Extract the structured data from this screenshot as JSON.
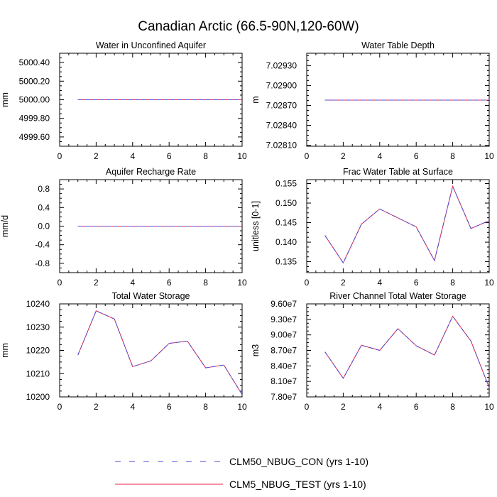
{
  "figure": {
    "title": "Canadian Arctic (66.5-90N,120-60W)"
  },
  "legend": {
    "items": [
      {
        "label": "CLM50_NBUG_CON (yrs 1-10)",
        "color": "#4a4adb",
        "dash": true
      },
      {
        "label": "CLM5_NBUG_TEST (yrs 1-10)",
        "color": "#e8264a",
        "dash": false
      }
    ]
  },
  "colors": {
    "con": "#4a4adb",
    "test": "#e8264a"
  },
  "chart_data": [
    {
      "type": "line",
      "title": "Water in Unconfined Aquifer",
      "ylabel": "mm",
      "xlim": [
        0,
        10
      ],
      "ylim": [
        4999.5,
        5000.5
      ],
      "xticks": [
        0,
        2,
        4,
        6,
        8,
        10
      ],
      "yticks": [
        4999.6,
        4999.8,
        5000.0,
        5000.2,
        5000.4
      ],
      "yticklabels": [
        "4999.60",
        "4999.80",
        "5000.00",
        "5000.20",
        "5000.40"
      ],
      "x": [
        1,
        2,
        3,
        4,
        5,
        6,
        7,
        8,
        9,
        10
      ],
      "series": [
        {
          "name": "CLM50_NBUG_CON (yrs 1-10)",
          "values": [
            5000,
            5000,
            5000,
            5000,
            5000,
            5000,
            5000,
            5000,
            5000,
            5000
          ]
        },
        {
          "name": "CLM5_NBUG_TEST (yrs 1-10)",
          "values": [
            5000,
            5000,
            5000,
            5000,
            5000,
            5000,
            5000,
            5000,
            5000,
            5000
          ]
        }
      ]
    },
    {
      "type": "line",
      "title": "Water Table Depth",
      "ylabel": "m",
      "xlim": [
        0,
        10
      ],
      "ylim": [
        7.028085,
        7.029485
      ],
      "xticks": [
        0,
        2,
        4,
        6,
        8,
        10
      ],
      "yticks": [
        7.0281,
        7.0284,
        7.0287,
        7.029,
        7.0293
      ],
      "yticklabels": [
        "7.02810",
        "7.02840",
        "7.02870",
        "7.02900",
        "7.02930"
      ],
      "x": [
        1,
        2,
        3,
        4,
        5,
        6,
        7,
        8,
        9,
        10
      ],
      "series": [
        {
          "name": "CLM50_NBUG_CON (yrs 1-10)",
          "values": [
            7.02878,
            7.02878,
            7.02878,
            7.02878,
            7.02878,
            7.02878,
            7.02878,
            7.02878,
            7.02878,
            7.02878
          ]
        },
        {
          "name": "CLM5_NBUG_TEST (yrs 1-10)",
          "values": [
            7.02878,
            7.02878,
            7.02878,
            7.02878,
            7.02878,
            7.02878,
            7.02878,
            7.02878,
            7.02878,
            7.02878
          ]
        }
      ]
    },
    {
      "type": "line",
      "title": "Aquifer Recharge Rate",
      "ylabel": "mm/d",
      "xlim": [
        0,
        10
      ],
      "ylim": [
        -1,
        1
      ],
      "xticks": [
        0,
        2,
        4,
        6,
        8,
        10
      ],
      "yticks": [
        -0.8,
        -0.4,
        0.0,
        0.4,
        0.8
      ],
      "yticklabels": [
        "-0.8",
        "-0.4",
        "0.0",
        "0.4",
        "0.8"
      ],
      "x": [
        1,
        2,
        3,
        4,
        5,
        6,
        7,
        8,
        9,
        10
      ],
      "series": [
        {
          "name": "CLM50_NBUG_CON (yrs 1-10)",
          "values": [
            0,
            0,
            0,
            0,
            0,
            0,
            0,
            0,
            0,
            0
          ]
        },
        {
          "name": "CLM5_NBUG_TEST (yrs 1-10)",
          "values": [
            0,
            0,
            0,
            0,
            0,
            0,
            0,
            0,
            0,
            0
          ]
        }
      ]
    },
    {
      "type": "line",
      "title": "Frac Water Table at Surface",
      "ylabel": "unitless [0-1]",
      "xlim": [
        0,
        10
      ],
      "ylim": [
        0.1322,
        0.156
      ],
      "xticks": [
        0,
        2,
        4,
        6,
        8,
        10
      ],
      "yticks": [
        0.135,
        0.14,
        0.145,
        0.15,
        0.155
      ],
      "yticklabels": [
        "0.135",
        "0.140",
        "0.145",
        "0.150",
        "0.155"
      ],
      "x": [
        1,
        2,
        3,
        4,
        5,
        6,
        7,
        8,
        9,
        10
      ],
      "series": [
        {
          "name": "CLM50_NBUG_CON (yrs 1-10)",
          "values": [
            0.1417,
            0.1347,
            0.1446,
            0.1485,
            0.1462,
            0.1439,
            0.1353,
            0.1543,
            0.1435,
            0.1455
          ]
        },
        {
          "name": "CLM5_NBUG_TEST (yrs 1-10)",
          "values": [
            0.1417,
            0.1347,
            0.1446,
            0.1485,
            0.1462,
            0.1439,
            0.1353,
            0.1543,
            0.1435,
            0.1455
          ]
        }
      ]
    },
    {
      "type": "line",
      "title": "Total Water Storage",
      "ylabel": "mm",
      "xlim": [
        0,
        10
      ],
      "ylim": [
        10200,
        10240
      ],
      "xticks": [
        0,
        2,
        4,
        6,
        8,
        10
      ],
      "yticks": [
        10200,
        10210,
        10220,
        10230,
        10240
      ],
      "yticklabels": [
        "10200",
        "10210",
        "10220",
        "10230",
        "10240"
      ],
      "x": [
        1,
        2,
        3,
        4,
        5,
        6,
        7,
        8,
        9,
        10
      ],
      "series": [
        {
          "name": "CLM50_NBUG_CON (yrs 1-10)",
          "values": [
            10218,
            10237,
            10233.5,
            10213,
            10215.5,
            10223,
            10224,
            10212.5,
            10213.7,
            10201
          ]
        },
        {
          "name": "CLM5_NBUG_TEST (yrs 1-10)",
          "values": [
            10218,
            10237,
            10233.5,
            10213,
            10215.5,
            10223,
            10224,
            10212.5,
            10213.7,
            10201
          ]
        }
      ]
    },
    {
      "type": "line",
      "title": "River Channel Total Water Storage",
      "ylabel": "m3",
      "xlim": [
        0,
        10
      ],
      "ylim": [
        78000000,
        96000000
      ],
      "xticks": [
        0,
        2,
        4,
        6,
        8,
        10
      ],
      "yticks": [
        78000000,
        81000000,
        84000000,
        87000000,
        90000000,
        93000000,
        96000000
      ],
      "yticklabels": [
        "7.80e7",
        "8.10e7",
        "8.40e7",
        "8.70e7",
        "9.00e7",
        "9.30e7",
        "9.60e7"
      ],
      "x": [
        1,
        2,
        3,
        4,
        5,
        6,
        7,
        8,
        9,
        10
      ],
      "series": [
        {
          "name": "CLM50_NBUG_CON (yrs 1-10)",
          "values": [
            86700000,
            81600000,
            88000000,
            87000000,
            91200000,
            87900000,
            86100000,
            93600000,
            88800000,
            79800000
          ]
        },
        {
          "name": "CLM5_NBUG_TEST (yrs 1-10)",
          "values": [
            86700000,
            81600000,
            88000000,
            87000000,
            91200000,
            87900000,
            86100000,
            93600000,
            88800000,
            79800000
          ]
        }
      ]
    }
  ]
}
